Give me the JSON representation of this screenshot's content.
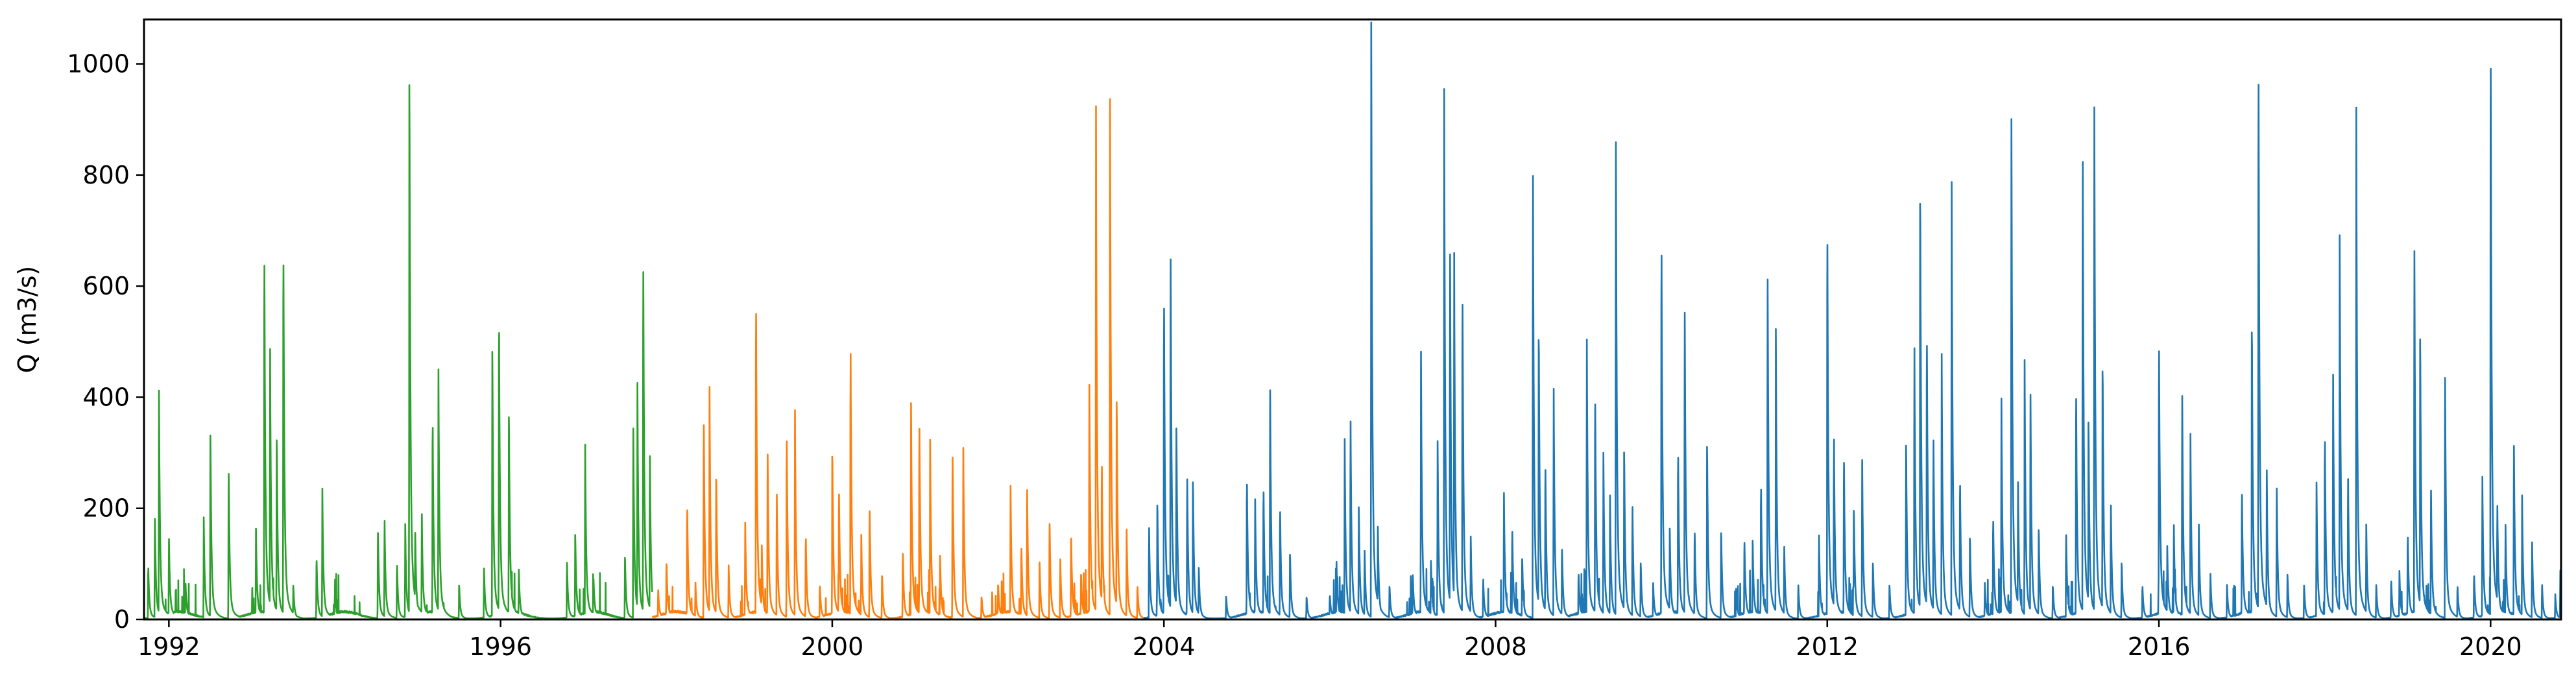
{
  "chart_data": {
    "type": "line",
    "title": "",
    "xlabel": "",
    "ylabel": "Q (m3/s)",
    "xlim": [
      1991.7,
      2020.85
    ],
    "ylim": [
      0,
      1080
    ],
    "xticks": [
      1992,
      1996,
      2000,
      2004,
      2008,
      2012,
      2016,
      2020
    ],
    "xtick_labels": [
      "1992",
      "1996",
      "2000",
      "2004",
      "2008",
      "2012",
      "2016",
      "2020"
    ],
    "yticks": [
      0,
      200,
      400,
      600,
      800,
      1000
    ],
    "ytick_labels": [
      "0",
      "200",
      "400",
      "600",
      "800",
      "1000"
    ],
    "grid": false,
    "legend": "none",
    "series": [
      {
        "color": "#2ca02c",
        "x_range": [
          1991.7,
          1997.83
        ],
        "peaks": [
          [
            1991.75,
            95
          ],
          [
            1991.83,
            180
          ],
          [
            1991.88,
            390
          ],
          [
            1992.0,
            140
          ],
          [
            1992.2,
            60
          ],
          [
            1992.42,
            170
          ],
          [
            1992.5,
            330
          ],
          [
            1992.72,
            270
          ],
          [
            1993.05,
            150
          ],
          [
            1993.15,
            660
          ],
          [
            1993.22,
            450
          ],
          [
            1993.3,
            320
          ],
          [
            1993.38,
            670
          ],
          [
            1993.5,
            60
          ],
          [
            1993.78,
            110
          ],
          [
            1993.85,
            220
          ],
          [
            1994.0,
            40
          ],
          [
            1994.52,
            160
          ],
          [
            1994.6,
            175
          ],
          [
            1994.75,
            100
          ],
          [
            1994.85,
            160
          ],
          [
            1994.9,
            960
          ],
          [
            1994.97,
            150
          ],
          [
            1995.05,
            175
          ],
          [
            1995.18,
            360
          ],
          [
            1995.25,
            420
          ],
          [
            1995.5,
            60
          ],
          [
            1995.8,
            90
          ],
          [
            1995.9,
            480
          ],
          [
            1995.98,
            540
          ],
          [
            1996.1,
            360
          ],
          [
            1996.22,
            80
          ],
          [
            1996.8,
            100
          ],
          [
            1996.9,
            150
          ],
          [
            1997.02,
            290
          ],
          [
            1997.12,
            70
          ],
          [
            1997.5,
            110
          ],
          [
            1997.6,
            340
          ],
          [
            1997.65,
            400
          ],
          [
            1997.72,
            645
          ],
          [
            1997.8,
            290
          ],
          [
            1997.85,
            160
          ]
        ]
      },
      {
        "color": "#ff7f0e",
        "x_range": [
          1997.83,
          2003.75
        ],
        "peaks": [
          [
            1997.9,
            50
          ],
          [
            1998.0,
            100
          ],
          [
            1998.25,
            200
          ],
          [
            1998.35,
            60
          ],
          [
            1998.45,
            360
          ],
          [
            1998.52,
            385
          ],
          [
            1998.6,
            260
          ],
          [
            1998.75,
            90
          ],
          [
            1998.95,
            160
          ],
          [
            1999.08,
            570
          ],
          [
            1999.15,
            120
          ],
          [
            1999.22,
            300
          ],
          [
            1999.33,
            220
          ],
          [
            1999.45,
            330
          ],
          [
            1999.55,
            350
          ],
          [
            1999.68,
            150
          ],
          [
            1999.85,
            60
          ],
          [
            2000.0,
            300
          ],
          [
            2000.08,
            230
          ],
          [
            2000.22,
            485
          ],
          [
            2000.35,
            140
          ],
          [
            2000.45,
            200
          ],
          [
            2000.6,
            80
          ],
          [
            2000.85,
            120
          ],
          [
            2000.95,
            360
          ],
          [
            2001.05,
            350
          ],
          [
            2001.18,
            300
          ],
          [
            2001.3,
            110
          ],
          [
            2001.45,
            300
          ],
          [
            2001.58,
            290
          ],
          [
            2001.8,
            40
          ],
          [
            2002.0,
            60
          ],
          [
            2002.15,
            220
          ],
          [
            2002.28,
            130
          ],
          [
            2002.35,
            215
          ],
          [
            2002.5,
            100
          ],
          [
            2002.62,
            175
          ],
          [
            2002.75,
            100
          ],
          [
            2002.88,
            150
          ],
          [
            2003.0,
            80
          ],
          [
            2003.1,
            410
          ],
          [
            2003.18,
            865
          ],
          [
            2003.25,
            280
          ],
          [
            2003.35,
            870
          ],
          [
            2003.43,
            390
          ],
          [
            2003.55,
            150
          ],
          [
            2003.68,
            60
          ]
        ]
      },
      {
        "color": "#1f77b4",
        "x_range": [
          2003.75,
          2020.85
        ],
        "peaks": [
          [
            2003.82,
            160
          ],
          [
            2003.92,
            210
          ],
          [
            2004.0,
            580
          ],
          [
            2004.08,
            645
          ],
          [
            2004.15,
            340
          ],
          [
            2004.28,
            250
          ],
          [
            2004.35,
            245
          ],
          [
            2004.42,
            90
          ],
          [
            2004.75,
            40
          ],
          [
            2005.0,
            250
          ],
          [
            2005.1,
            200
          ],
          [
            2005.2,
            235
          ],
          [
            2005.28,
            410
          ],
          [
            2005.4,
            200
          ],
          [
            2005.52,
            120
          ],
          [
            2005.72,
            40
          ],
          [
            2006.0,
            40
          ],
          [
            2006.08,
            100
          ],
          [
            2006.18,
            290
          ],
          [
            2006.25,
            350
          ],
          [
            2006.35,
            200
          ],
          [
            2006.42,
            120
          ],
          [
            2006.5,
            1010
          ],
          [
            2006.58,
            150
          ],
          [
            2006.72,
            60
          ],
          [
            2007.0,
            80
          ],
          [
            2007.1,
            450
          ],
          [
            2007.22,
            100
          ],
          [
            2007.3,
            300
          ],
          [
            2007.38,
            860
          ],
          [
            2007.45,
            650
          ],
          [
            2007.5,
            620
          ],
          [
            2007.6,
            590
          ],
          [
            2007.7,
            140
          ],
          [
            2007.85,
            70
          ],
          [
            2008.1,
            210
          ],
          [
            2008.2,
            160
          ],
          [
            2008.32,
            110
          ],
          [
            2008.45,
            790
          ],
          [
            2008.52,
            520
          ],
          [
            2008.6,
            280
          ],
          [
            2008.7,
            390
          ],
          [
            2008.8,
            130
          ],
          [
            2009.0,
            80
          ],
          [
            2009.1,
            470
          ],
          [
            2009.2,
            400
          ],
          [
            2009.3,
            280
          ],
          [
            2009.38,
            200
          ],
          [
            2009.45,
            850
          ],
          [
            2009.55,
            300
          ],
          [
            2009.65,
            200
          ],
          [
            2009.75,
            100
          ],
          [
            2009.9,
            60
          ],
          [
            2010.0,
            680
          ],
          [
            2010.1,
            150
          ],
          [
            2010.2,
            300
          ],
          [
            2010.28,
            550
          ],
          [
            2010.4,
            160
          ],
          [
            2010.55,
            310
          ],
          [
            2010.72,
            160
          ],
          [
            2010.9,
            50
          ],
          [
            2011.0,
            140
          ],
          [
            2011.1,
            130
          ],
          [
            2011.2,
            240
          ],
          [
            2011.28,
            610
          ],
          [
            2011.38,
            470
          ],
          [
            2011.48,
            130
          ],
          [
            2011.65,
            60
          ],
          [
            2011.9,
            140
          ],
          [
            2012.0,
            700
          ],
          [
            2012.08,
            320
          ],
          [
            2012.2,
            290
          ],
          [
            2012.32,
            200
          ],
          [
            2012.42,
            280
          ],
          [
            2012.55,
            100
          ],
          [
            2012.75,
            60
          ],
          [
            2012.95,
            310
          ],
          [
            2013.05,
            480
          ],
          [
            2013.12,
            770
          ],
          [
            2013.2,
            510
          ],
          [
            2013.28,
            320
          ],
          [
            2013.38,
            430
          ],
          [
            2013.5,
            740
          ],
          [
            2013.6,
            250
          ],
          [
            2013.72,
            150
          ],
          [
            2013.9,
            60
          ],
          [
            2014.0,
            180
          ],
          [
            2014.1,
            370
          ],
          [
            2014.22,
            880
          ],
          [
            2014.3,
            230
          ],
          [
            2014.38,
            420
          ],
          [
            2014.45,
            400
          ],
          [
            2014.55,
            160
          ],
          [
            2014.72,
            60
          ],
          [
            2014.88,
            150
          ],
          [
            2015.0,
            410
          ],
          [
            2015.08,
            820
          ],
          [
            2015.15,
            350
          ],
          [
            2015.22,
            900
          ],
          [
            2015.32,
            460
          ],
          [
            2015.42,
            200
          ],
          [
            2015.55,
            100
          ],
          [
            2015.8,
            60
          ],
          [
            2016.0,
            500
          ],
          [
            2016.1,
            120
          ],
          [
            2016.18,
            150
          ],
          [
            2016.28,
            400
          ],
          [
            2016.38,
            300
          ],
          [
            2016.48,
            170
          ],
          [
            2016.62,
            80
          ],
          [
            2016.82,
            60
          ],
          [
            2017.0,
            230
          ],
          [
            2017.12,
            530
          ],
          [
            2017.2,
            1000
          ],
          [
            2017.3,
            250
          ],
          [
            2017.42,
            230
          ],
          [
            2017.55,
            80
          ],
          [
            2017.75,
            60
          ],
          [
            2017.9,
            230
          ],
          [
            2018.0,
            330
          ],
          [
            2018.1,
            410
          ],
          [
            2018.18,
            620
          ],
          [
            2018.28,
            250
          ],
          [
            2018.38,
            830
          ],
          [
            2018.5,
            160
          ],
          [
            2018.62,
            60
          ],
          [
            2018.8,
            70
          ],
          [
            2018.9,
            80
          ],
          [
            2019.0,
            150
          ],
          [
            2019.08,
            660
          ],
          [
            2019.15,
            500
          ],
          [
            2019.28,
            230
          ],
          [
            2019.45,
            430
          ],
          [
            2019.6,
            60
          ],
          [
            2019.8,
            80
          ],
          [
            2019.9,
            240
          ],
          [
            2020.0,
            1030
          ],
          [
            2020.08,
            200
          ],
          [
            2020.18,
            150
          ],
          [
            2020.28,
            310
          ],
          [
            2020.38,
            200
          ],
          [
            2020.5,
            130
          ],
          [
            2020.62,
            60
          ],
          [
            2020.78,
            40
          ],
          [
            2020.84,
            80
          ]
        ]
      }
    ]
  }
}
